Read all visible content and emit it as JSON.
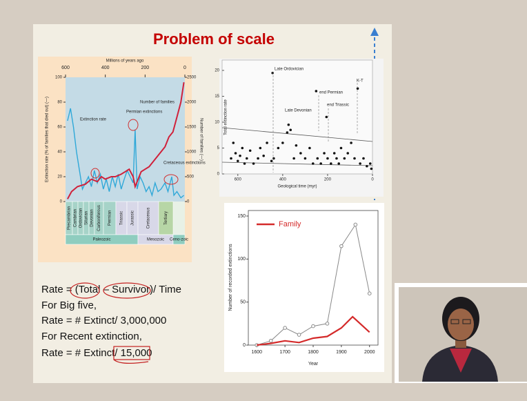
{
  "slide": {
    "title": "Problem of scale",
    "text_lines": [
      "Rate = (Total – Survivor)/ Time",
      "For Big five,",
      "Rate = # Extinct/ 3,000,000",
      "For Recent extinction,",
      "Rate = # Extinct/ 15,000"
    ]
  },
  "figure_left": {
    "top_axis_label": "Millions of years ago",
    "left_axis_label": "Extinction rate (% of families that died out) (—)",
    "right_axis_label": "Number of families (—)",
    "xlim": [
      600,
      0
    ],
    "xticks": [
      600,
      400,
      200,
      0
    ],
    "ylim": [
      0,
      100
    ],
    "yticks": [
      0,
      20,
      40,
      60,
      80,
      100
    ],
    "y2lim": [
      0,
      2500
    ],
    "y2ticks": [
      0,
      500,
      1000,
      1500,
      2000,
      2500
    ],
    "annotations": [
      "Permian extinctions",
      "Cretaceous extinctions"
    ],
    "periods": [
      "Precambrian",
      "Cambrian",
      "Ordovician",
      "Silurian",
      "Devonian",
      "Carboniferous",
      "Permian",
      "Triassic",
      "Jurassic",
      "Cretaceous",
      "Tertiary"
    ],
    "eras": [
      "Paleozoic",
      "Mesozoic",
      "Ceno-zoic"
    ],
    "series": [
      {
        "name": "Extinction rate",
        "color": "#2fa8d8",
        "x": [
          590,
          575,
          560,
          545,
          530,
          515,
          500,
          485,
          470,
          455,
          440,
          425,
          410,
          395,
          380,
          365,
          350,
          335,
          320,
          305,
          290,
          275,
          260,
          250,
          240,
          225,
          210,
          195,
          180,
          165,
          150,
          135,
          120,
          100,
          85,
          66,
          55,
          40,
          20,
          5
        ],
        "values": [
          65,
          75,
          60,
          40,
          25,
          10,
          15,
          20,
          12,
          25,
          15,
          22,
          10,
          18,
          8,
          20,
          12,
          22,
          10,
          18,
          25,
          20,
          15,
          58,
          10,
          20,
          15,
          8,
          12,
          5,
          15,
          8,
          10,
          15,
          8,
          20,
          5,
          8,
          3,
          5
        ]
      },
      {
        "name": "Number of families",
        "color": "#d0203a",
        "axis": "y2",
        "x": [
          590,
          570,
          540,
          500,
          470,
          440,
          420,
          400,
          370,
          350,
          320,
          300,
          280,
          260,
          250,
          240,
          220,
          200,
          180,
          160,
          140,
          120,
          100,
          80,
          60,
          40,
          20,
          5
        ],
        "values": [
          50,
          200,
          300,
          350,
          450,
          400,
          500,
          450,
          500,
          500,
          550,
          600,
          650,
          500,
          300,
          400,
          600,
          650,
          700,
          800,
          900,
          1000,
          1100,
          1300,
          1400,
          1700,
          2000,
          2400
        ]
      }
    ]
  },
  "figure_top_right": {
    "y_axis_label": "Total extinction rate",
    "x_axis_label": "Geological time (myr)",
    "xlim": [
      670,
      0
    ],
    "xticks": [
      600,
      400,
      200,
      0
    ],
    "ylim": [
      0,
      22
    ],
    "yticks": [
      0,
      5,
      10,
      15,
      20
    ],
    "annotations": [
      "Late Ordovician",
      "Late Devonian",
      "end Permian",
      "end Triassic",
      "K-T"
    ],
    "x": [
      630,
      620,
      610,
      600,
      590,
      580,
      570,
      560,
      545,
      530,
      510,
      500,
      485,
      470,
      450,
      445,
      440,
      420,
      400,
      380,
      374,
      365,
      350,
      340,
      320,
      300,
      280,
      265,
      251,
      245,
      230,
      215,
      205,
      200,
      185,
      170,
      160,
      150,
      140,
      125,
      110,
      95,
      80,
      66,
      55,
      40,
      25,
      10,
      5
    ],
    "values": [
      3,
      6,
      4,
      2.5,
      3.5,
      5,
      2,
      3,
      4.5,
      2,
      3,
      5,
      3.5,
      6,
      2.5,
      19.5,
      3,
      5,
      6,
      8,
      9.5,
      8.5,
      3,
      5.5,
      4,
      3,
      5,
      2,
      16,
      3,
      2,
      4,
      11,
      3,
      2,
      4,
      3,
      2,
      5,
      3,
      4,
      6,
      3,
      16.5,
      2,
      3,
      1.5,
      2,
      1
    ]
  },
  "figure_bottom_right": {
    "y_axis_label": "Number of recorded extinctions",
    "x_axis_label": "Year",
    "xlim": [
      1570,
      2030
    ],
    "xticks": [
      1600,
      1700,
      1800,
      1900,
      2000
    ],
    "ylim": [
      0,
      150
    ],
    "yticks": [
      0,
      50,
      100,
      150
    ],
    "series": [
      {
        "color": "#888888",
        "x": [
          1600,
          1650,
          1700,
          1750,
          1800,
          1850,
          1900,
          1950,
          2000
        ],
        "values": [
          0,
          5,
          20,
          12,
          22,
          25,
          115,
          140,
          60
        ]
      },
      {
        "name": "Family",
        "color": "#d42a2a",
        "x": [
          1600,
          1650,
          1700,
          1750,
          1800,
          1850,
          1900,
          1940,
          2000
        ],
        "values": [
          0,
          2,
          5,
          3,
          8,
          10,
          20,
          33,
          15
        ]
      }
    ]
  }
}
